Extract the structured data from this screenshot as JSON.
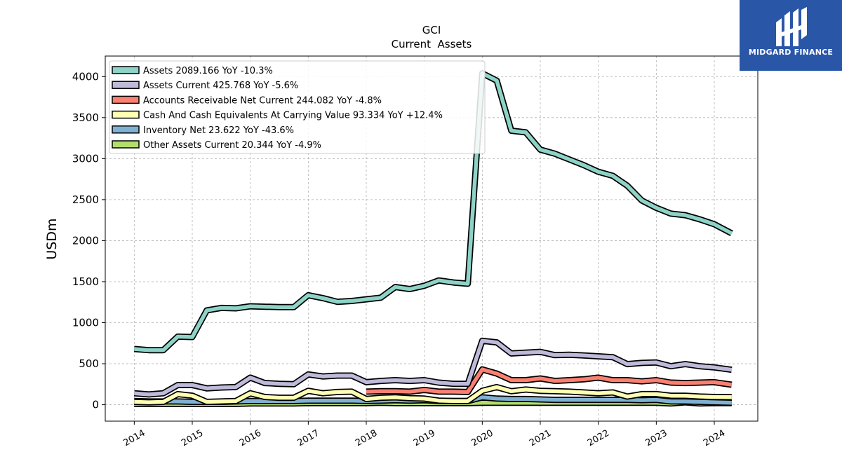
{
  "brand": {
    "name": "MIDGARD FINANCE",
    "logo_icon": "midgard-monogram-icon",
    "color": "#2a56a8"
  },
  "chart_data": {
    "type": "line",
    "title": "GCI",
    "subtitle": "Current  Assets",
    "ylabel": "USDm",
    "xlabel": "",
    "xlim": [
      2013.5,
      2024.75
    ],
    "ylim": [
      -200,
      4250
    ],
    "yticks": [
      0,
      500,
      1000,
      1500,
      2000,
      2500,
      3000,
      3500,
      4000
    ],
    "xticks": [
      "2014",
      "2015",
      "2016",
      "2017",
      "2018",
      "2019",
      "2020",
      "2021",
      "2022",
      "2023",
      "2024"
    ],
    "grid": true,
    "legend_position": "top-left",
    "series": [
      {
        "name": "Assets",
        "legend": "Assets  2089.166 YoY -10.3%",
        "color": "#8dd3c7",
        "x": [
          2014.0,
          2014.25,
          2014.5,
          2014.75,
          2015.0,
          2015.25,
          2015.5,
          2015.75,
          2016.0,
          2016.25,
          2016.5,
          2016.75,
          2017.0,
          2017.25,
          2017.5,
          2017.75,
          2018.0,
          2018.25,
          2018.5,
          2018.75,
          2019.0,
          2019.25,
          2019.5,
          2019.75,
          2020.0,
          2020.25,
          2020.5,
          2020.75,
          2021.0,
          2021.25,
          2021.5,
          2021.75,
          2022.0,
          2022.25,
          2022.5,
          2022.75,
          2023.0,
          2023.25,
          2023.5,
          2023.75,
          2024.0,
          2024.3
        ],
        "y": [
          680,
          665,
          665,
          830,
          825,
          1150,
          1180,
          1175,
          1200,
          1195,
          1190,
          1190,
          1335,
          1300,
          1255,
          1265,
          1285,
          1305,
          1435,
          1410,
          1450,
          1515,
          1490,
          1475,
          4040,
          3950,
          3340,
          3320,
          3110,
          3060,
          2990,
          2920,
          2840,
          2790,
          2670,
          2490,
          2400,
          2330,
          2310,
          2260,
          2200,
          2089
        ]
      },
      {
        "name": "Assets Current",
        "legend": "Assets Current  425.768 YoY -5.6%",
        "color": "#bebada",
        "x": [
          2014.0,
          2014.25,
          2014.5,
          2014.75,
          2015.0,
          2015.25,
          2015.5,
          2015.75,
          2016.0,
          2016.25,
          2016.5,
          2016.75,
          2017.0,
          2017.25,
          2017.5,
          2017.75,
          2018.0,
          2018.25,
          2018.5,
          2018.75,
          2019.0,
          2019.25,
          2019.5,
          2019.75,
          2020.0,
          2020.25,
          2020.5,
          2020.75,
          2021.0,
          2021.25,
          2021.5,
          2021.75,
          2022.0,
          2022.25,
          2022.5,
          2022.75,
          2023.0,
          2023.25,
          2023.5,
          2023.75,
          2024.0,
          2024.3
        ],
        "y": [
          140,
          125,
          140,
          240,
          240,
          200,
          210,
          215,
          330,
          265,
          255,
          250,
          370,
          345,
          355,
          355,
          275,
          290,
          300,
          290,
          300,
          270,
          255,
          255,
          780,
          760,
          625,
          635,
          645,
          605,
          610,
          600,
          590,
          580,
          495,
          510,
          515,
          470,
          495,
          470,
          455,
          426
        ]
      },
      {
        "name": "Accounts Receivable Net Current",
        "legend": "Accounts Receivable Net Current  244.082 YoY -4.8%",
        "color": "#fb8072",
        "x": [
          2018.0,
          2018.25,
          2018.5,
          2018.75,
          2019.0,
          2019.25,
          2019.5,
          2019.75,
          2020.0,
          2020.25,
          2020.5,
          2020.75,
          2021.0,
          2021.25,
          2021.5,
          2021.75,
          2022.0,
          2022.25,
          2022.5,
          2022.75,
          2023.0,
          2023.25,
          2023.5,
          2023.75,
          2024.0,
          2024.3
        ],
        "y": [
          160,
          165,
          165,
          160,
          180,
          160,
          160,
          155,
          430,
          380,
          300,
          300,
          320,
          290,
          300,
          310,
          330,
          300,
          300,
          285,
          300,
          270,
          265,
          270,
          275,
          244
        ]
      },
      {
        "name": "Cash And Cash Equivalents At Carrying Value",
        "legend": "Cash And Cash Equivalents At Carrying Value  93.334 YoY +12.4%",
        "color": "#ffffb3",
        "x": [
          2014.0,
          2014.25,
          2014.5,
          2014.75,
          2015.0,
          2015.25,
          2015.5,
          2015.75,
          2016.0,
          2016.25,
          2016.5,
          2016.75,
          2017.0,
          2017.25,
          2017.5,
          2017.75,
          2018.0,
          2018.25,
          2018.5,
          2018.75,
          2019.0,
          2019.25,
          2019.5,
          2019.75,
          2020.0,
          2020.25,
          2020.5,
          2020.75,
          2021.0,
          2021.25,
          2021.5,
          2021.75,
          2022.0,
          2022.25,
          2022.5,
          2022.75,
          2023.0,
          2023.25,
          2023.5,
          2023.75,
          2024.0,
          2024.3
        ],
        "y": [
          35,
          30,
          35,
          130,
          110,
          35,
          40,
          45,
          140,
          95,
          85,
          85,
          170,
          140,
          155,
          160,
          70,
          85,
          90,
          80,
          75,
          50,
          45,
          45,
          170,
          215,
          165,
          185,
          170,
          165,
          160,
          150,
          140,
          150,
          100,
          130,
          130,
          110,
          110,
          100,
          95,
          93
        ]
      },
      {
        "name": "Inventory Net",
        "legend": "Inventory Net  23.622 YoY -43.6%",
        "color": "#80b1d3",
        "x": [
          2014.0,
          2014.25,
          2014.5,
          2014.75,
          2015.0,
          2015.25,
          2015.5,
          2015.75,
          2016.0,
          2016.25,
          2016.5,
          2016.75,
          2017.0,
          2017.25,
          2017.5,
          2017.75,
          2018.0,
          2018.25,
          2018.5,
          2018.75,
          2019.0,
          2019.25,
          2019.5,
          2019.75,
          2020.0,
          2020.25,
          2020.5,
          2020.75,
          2021.0,
          2021.25,
          2021.5,
          2021.75,
          2022.0,
          2022.25,
          2022.5,
          2022.75,
          2023.0,
          2023.25,
          2023.5,
          2023.75,
          2024.0,
          2024.3
        ],
        "y": [
          45,
          40,
          40,
          40,
          35,
          35,
          35,
          40,
          45,
          45,
          45,
          45,
          50,
          50,
          50,
          50,
          45,
          50,
          55,
          50,
          55,
          45,
          45,
          45,
          90,
          75,
          70,
          70,
          65,
          60,
          60,
          60,
          60,
          60,
          60,
          55,
          60,
          40,
          40,
          35,
          30,
          24
        ]
      },
      {
        "name": "Other Assets Current",
        "legend": "Other Assets Current  20.344 YoY -4.9%",
        "color": "#b3de69",
        "x": [
          2014.0,
          2014.25,
          2014.5,
          2014.75,
          2015.0,
          2015.25,
          2015.5,
          2015.75,
          2016.0,
          2016.25,
          2016.5,
          2016.75,
          2017.0,
          2017.25,
          2017.5,
          2017.75,
          2018.0,
          2018.25,
          2018.5,
          2018.75,
          2019.0,
          2019.25,
          2019.5,
          2019.75,
          2020.0,
          2020.25,
          2020.5,
          2020.75,
          2021.0,
          2021.25,
          2021.5,
          2021.75,
          2022.0,
          2022.25,
          2022.5,
          2022.75,
          2023.0,
          2023.25,
          2023.5,
          2023.75,
          2024.0,
          2024.3
        ],
        "y": [
          10,
          10,
          10,
          10,
          10,
          10,
          10,
          10,
          15,
          15,
          15,
          15,
          20,
          20,
          20,
          20,
          20,
          25,
          20,
          20,
          20,
          20,
          20,
          20,
          25,
          25,
          25,
          25,
          25,
          25,
          25,
          25,
          25,
          25,
          25,
          25,
          25,
          15,
          30,
          15,
          20,
          20
        ]
      }
    ]
  }
}
